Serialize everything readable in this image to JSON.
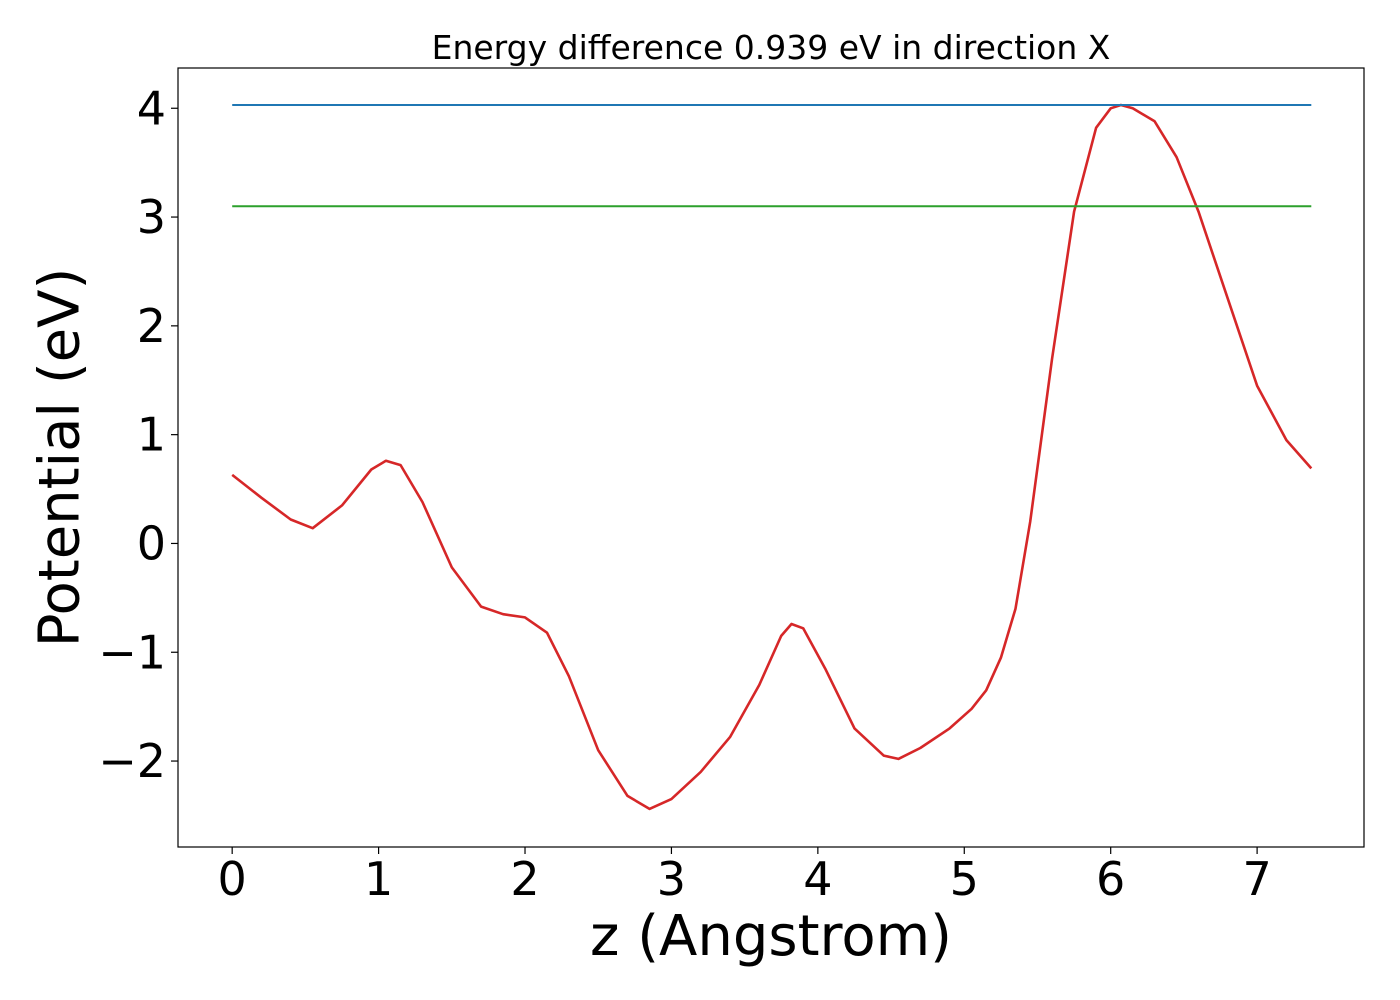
{
  "chart_data": {
    "type": "line",
    "title": "Energy difference 0.939 eV in direction X",
    "xlabel": "z (Angstrom)",
    "ylabel": "Potential (eV)",
    "xlim": [
      -0.37,
      7.73
    ],
    "ylim": [
      -2.79,
      4.37
    ],
    "xticks": [
      0,
      1,
      2,
      3,
      4,
      5,
      6,
      7
    ],
    "yticks": [
      -2,
      -1,
      0,
      1,
      2,
      3,
      4
    ],
    "ytick_labels": [
      "−2",
      "−1",
      "0",
      "1",
      "2",
      "3",
      "4"
    ],
    "grid": false,
    "legend": "none",
    "series": [
      {
        "color": "#d62728",
        "x": [
          0.0,
          0.2,
          0.4,
          0.55,
          0.75,
          0.95,
          1.05,
          1.15,
          1.3,
          1.5,
          1.7,
          1.85,
          2.0,
          2.15,
          2.3,
          2.5,
          2.7,
          2.85,
          3.0,
          3.2,
          3.4,
          3.6,
          3.75,
          3.82,
          3.9,
          4.05,
          4.25,
          4.45,
          4.55,
          4.7,
          4.9,
          5.05,
          5.15,
          5.25,
          5.35,
          5.45,
          5.6,
          5.75,
          5.9,
          6.0,
          6.07,
          6.15,
          6.3,
          6.45,
          6.6,
          6.8,
          7.0,
          7.2,
          7.37
        ],
        "y": [
          0.63,
          0.42,
          0.22,
          0.14,
          0.35,
          0.68,
          0.76,
          0.72,
          0.38,
          -0.22,
          -0.58,
          -0.65,
          -0.68,
          -0.82,
          -1.22,
          -1.9,
          -2.32,
          -2.44,
          -2.35,
          -2.1,
          -1.78,
          -1.3,
          -0.85,
          -0.74,
          -0.78,
          -1.15,
          -1.7,
          -1.95,
          -1.98,
          -1.88,
          -1.7,
          -1.52,
          -1.35,
          -1.05,
          -0.6,
          0.2,
          1.7,
          3.05,
          3.82,
          4.0,
          4.03,
          4.0,
          3.88,
          3.55,
          3.05,
          2.25,
          1.45,
          0.95,
          0.69
        ]
      },
      {
        "color": "#1f77b4",
        "x": [
          0.0,
          7.37
        ],
        "y": [
          4.03,
          4.03
        ]
      },
      {
        "color": "#2ca02c",
        "x": [
          0.0,
          7.37
        ],
        "y": [
          3.1,
          3.1
        ]
      }
    ]
  }
}
